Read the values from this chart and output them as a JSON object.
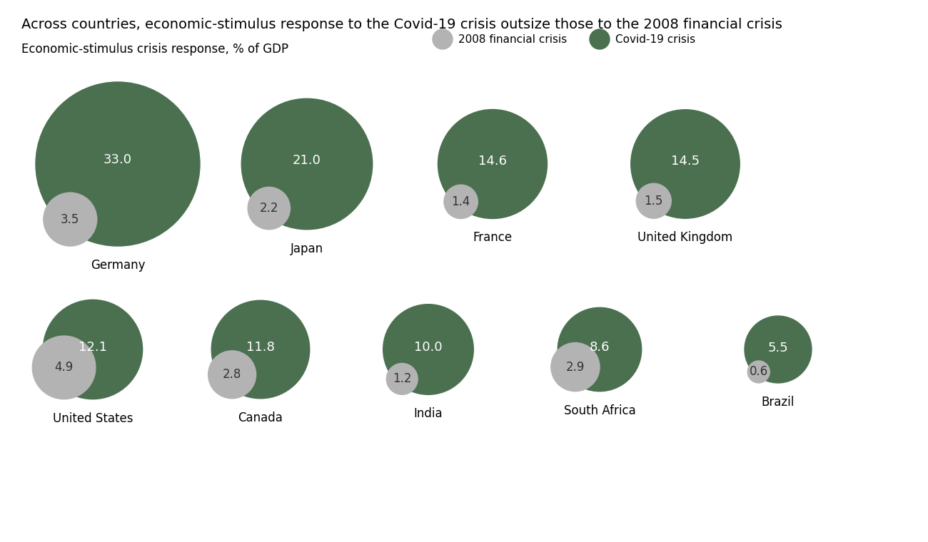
{
  "title": "Across countries, economic-stimulus response to the Covid-19 crisis outsize those to the 2008 financial crisis",
  "ylabel": "Economic-stimulus crisis response, % of GDP",
  "legend_2008": "2008 financial crisis",
  "legend_covid": "Covid-19 crisis",
  "color_2008": "#b3b3b3",
  "color_covid": "#4a7050",
  "countries_row1": [
    "Germany",
    "Japan",
    "France",
    "United Kingdom"
  ],
  "covid_row1": [
    33.0,
    21.0,
    14.6,
    14.5
  ],
  "crisis2008_row1": [
    3.5,
    2.2,
    1.4,
    1.5
  ],
  "countries_row2": [
    "United States",
    "Canada",
    "India",
    "South Africa",
    "Brazil"
  ],
  "covid_row2": [
    12.1,
    11.8,
    10.0,
    8.6,
    5.5
  ],
  "crisis2008_row2": [
    4.9,
    2.8,
    1.2,
    2.9,
    0.6
  ],
  "title_fontsize": 14,
  "label_fontsize": 12,
  "country_fontsize": 12,
  "bubble_fontsize": 13
}
